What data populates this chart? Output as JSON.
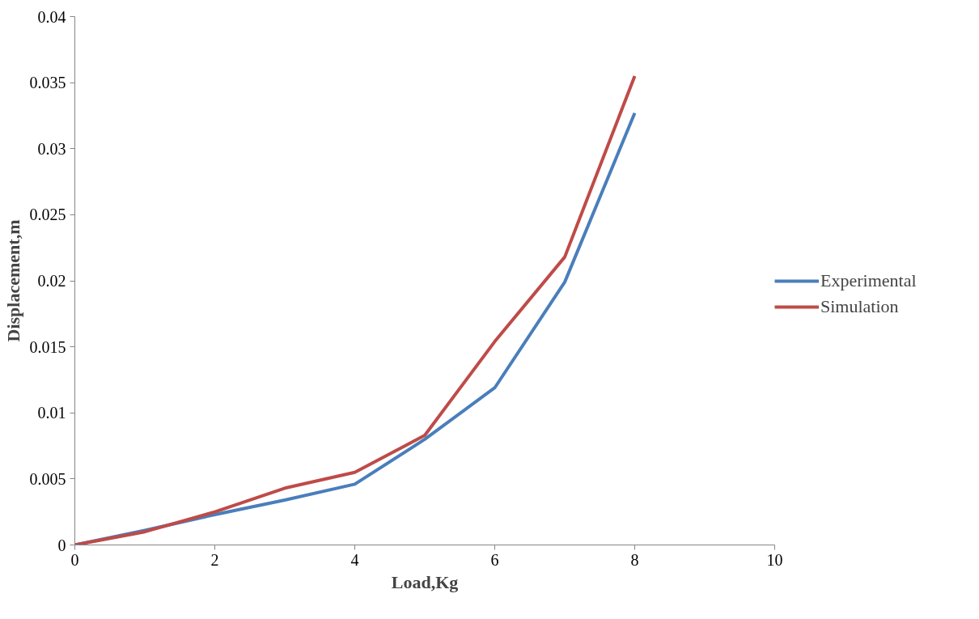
{
  "chart_data": {
    "type": "line",
    "xlabel": "Load,Kg",
    "ylabel": "Displacement,m",
    "x": [
      0,
      1,
      2,
      3,
      4,
      5,
      6,
      7,
      8
    ],
    "series": [
      {
        "name": "Experimental",
        "color": "#4a7ebb",
        "values": [
          0,
          0.0011,
          0.0023,
          0.0034,
          0.0046,
          0.008,
          0.0119,
          0.0199,
          0.0327
        ]
      },
      {
        "name": "Simulation",
        "color": "#be4b48",
        "values": [
          0,
          0.001,
          0.0025,
          0.0043,
          0.0055,
          0.0083,
          0.0154,
          0.0218,
          0.0355
        ]
      }
    ],
    "xlim": [
      0,
      10
    ],
    "xticks": [
      0,
      2,
      4,
      6,
      8,
      10
    ],
    "ylim": [
      0,
      0.04
    ],
    "yticks": [
      0,
      0.005,
      0.01,
      0.015,
      0.02,
      0.025,
      0.03,
      0.035,
      0.04
    ],
    "grid": false,
    "legend": "right",
    "marker": "none",
    "line_style": "solid"
  }
}
